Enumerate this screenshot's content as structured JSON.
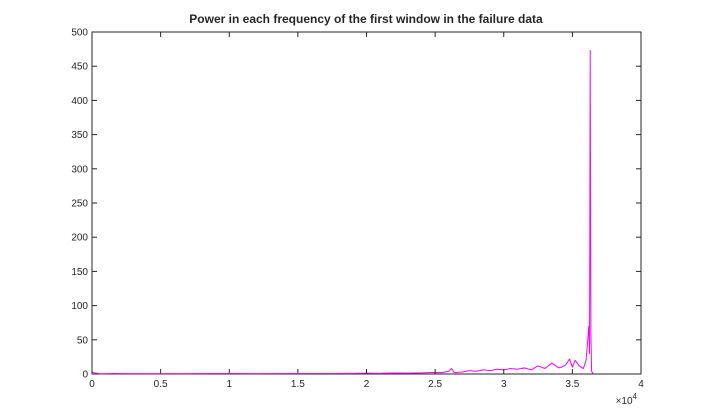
{
  "chart_data": {
    "type": "line",
    "title": "Power in each frequency of the first window in the failure data",
    "xlabel": "",
    "ylabel": "",
    "xlim": [
      0,
      40000
    ],
    "ylim": [
      0,
      500
    ],
    "x_exponent_label": "×10",
    "x_exponent_power": "4",
    "x_ticks": [
      0,
      5000,
      10000,
      15000,
      20000,
      25000,
      30000,
      35000,
      40000
    ],
    "x_tick_labels": [
      "0",
      "0.5",
      "1",
      "1.5",
      "2",
      "2.5",
      "3",
      "3.5",
      "4"
    ],
    "y_ticks": [
      0,
      50,
      100,
      150,
      200,
      250,
      300,
      350,
      400,
      450,
      500
    ],
    "y_tick_labels": [
      "0",
      "50",
      "100",
      "150",
      "200",
      "250",
      "300",
      "350",
      "400",
      "450",
      "500"
    ],
    "grid": false,
    "box": true,
    "series": [
      {
        "color": "#ff00ff",
        "points": [
          [
            0,
            2.5
          ],
          [
            300,
            1.2
          ],
          [
            600,
            0.4
          ],
          [
            1500,
            0.8
          ],
          [
            3000,
            0.5
          ],
          [
            5000,
            0.6
          ],
          [
            7000,
            0.5
          ],
          [
            10000,
            0.7
          ],
          [
            12000,
            0.6
          ],
          [
            15000,
            0.8
          ],
          [
            17000,
            0.7
          ],
          [
            19000,
            1.0
          ],
          [
            20000,
            1.2
          ],
          [
            21000,
            1.0
          ],
          [
            22000,
            1.5
          ],
          [
            23000,
            1.2
          ],
          [
            24000,
            1.6
          ],
          [
            24800,
            2.2
          ],
          [
            25500,
            2.0
          ],
          [
            26000,
            4.0
          ],
          [
            26200,
            8.0
          ],
          [
            26400,
            2.0
          ],
          [
            27000,
            3.0
          ],
          [
            27500,
            5.0
          ],
          [
            28000,
            4.0
          ],
          [
            28500,
            6.0
          ],
          [
            29000,
            5.0
          ],
          [
            29500,
            7.0
          ],
          [
            30000,
            6.0
          ],
          [
            30500,
            8.0
          ],
          [
            31000,
            7.0
          ],
          [
            31500,
            9.0
          ],
          [
            32000,
            6.0
          ],
          [
            32500,
            12.0
          ],
          [
            33000,
            8.0
          ],
          [
            33500,
            16.0
          ],
          [
            34000,
            9.0
          ],
          [
            34200,
            10.0
          ],
          [
            34500,
            13.0
          ],
          [
            34800,
            22.0
          ],
          [
            35000,
            10.0
          ],
          [
            35200,
            20.0
          ],
          [
            35500,
            12.0
          ],
          [
            35800,
            8.0
          ],
          [
            36000,
            20.0
          ],
          [
            36100,
            45.0
          ],
          [
            36200,
            70.0
          ],
          [
            36250,
            30.0
          ],
          [
            36300,
            473.0
          ],
          [
            36350,
            60.0
          ],
          [
            36400,
            4.0
          ],
          [
            36500,
            0.5
          ]
        ]
      }
    ]
  }
}
